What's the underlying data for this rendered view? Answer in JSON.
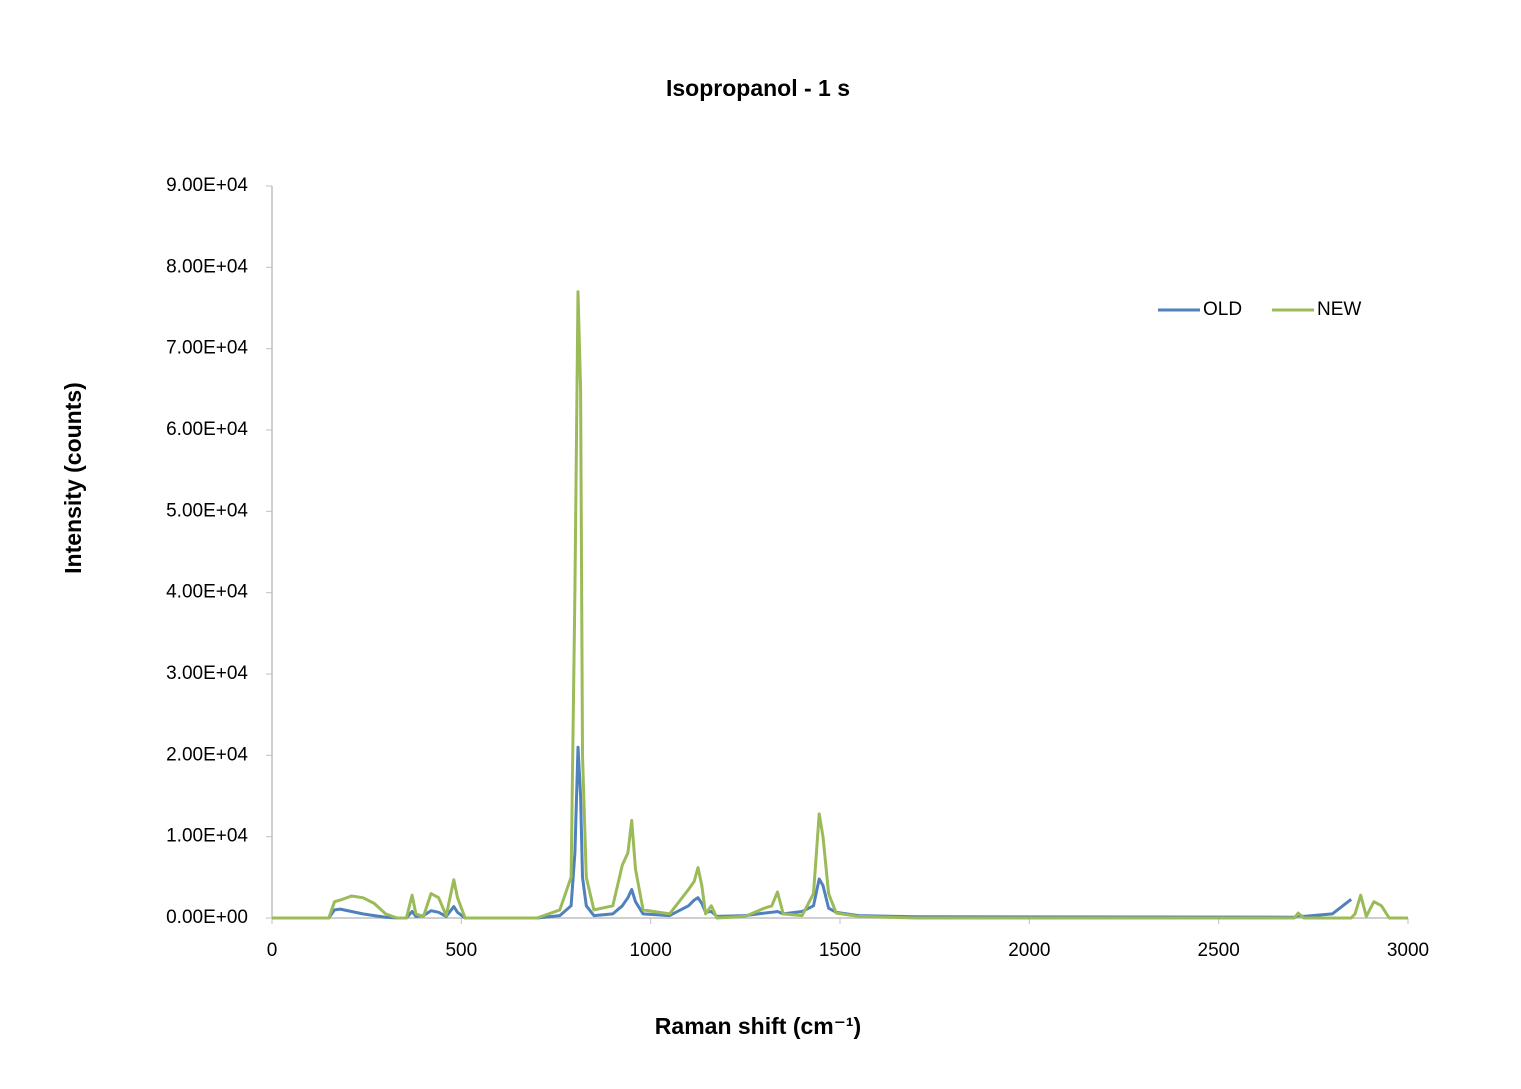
{
  "chart_data": {
    "type": "line",
    "title": "Isopropanol - 1 s",
    "x_label": "Raman shift (cm⁻¹)",
    "y_label": "Intensity (counts)",
    "xlim": [
      0,
      3000
    ],
    "xticks": [
      0,
      500,
      1000,
      1500,
      2000,
      2500,
      3000
    ],
    "ylim": [
      0,
      90000
    ],
    "yticks": [
      {
        "value": 0,
        "label": "0.00E+00"
      },
      {
        "value": 10000,
        "label": "1.00E+04"
      },
      {
        "value": 20000,
        "label": "2.00E+04"
      },
      {
        "value": 30000,
        "label": "3.00E+04"
      },
      {
        "value": 40000,
        "label": "4.00E+04"
      },
      {
        "value": 50000,
        "label": "5.00E+04"
      },
      {
        "value": 60000,
        "label": "6.00E+04"
      },
      {
        "value": 70000,
        "label": "7.00E+04"
      },
      {
        "value": 80000,
        "label": "8.00E+04"
      },
      {
        "value": 90000,
        "label": "9.00E+04"
      }
    ],
    "grid": false,
    "legend": "top-right",
    "x": [
      0,
      100,
      150,
      165,
      180,
      210,
      240,
      270,
      300,
      330,
      355,
      370,
      380,
      400,
      420,
      440,
      460,
      480,
      490,
      510,
      700,
      760,
      790,
      800,
      808,
      815,
      820,
      830,
      850,
      900,
      925,
      940,
      950,
      960,
      980,
      1050,
      1100,
      1115,
      1125,
      1135,
      1145,
      1160,
      1175,
      1250,
      1300,
      1320,
      1335,
      1350,
      1400,
      1430,
      1445,
      1455,
      1470,
      1490,
      1550,
      1700,
      2700,
      2710,
      2725,
      2800,
      2850,
      2860,
      2875,
      2890,
      2910,
      2930,
      2950,
      3000
    ],
    "series": [
      {
        "name": "OLD",
        "color": "#4f81bd",
        "values": [
          0,
          0,
          0,
          1000,
          1100,
          800,
          500,
          300,
          100,
          0,
          0,
          800,
          200,
          300,
          900,
          700,
          200,
          1400,
          700,
          0,
          0,
          300,
          1500,
          8000,
          21000,
          15000,
          5000,
          1500,
          300,
          500,
          1500,
          2500,
          3500,
          2000,
          500,
          300,
          1500,
          2200,
          2500,
          1800,
          700,
          800,
          200,
          300,
          600,
          700,
          800,
          500,
          800,
          1500,
          4800,
          4000,
          1200,
          700,
          300,
          150,
          100,
          300,
          200,
          500,
          2300,
          null,
          null,
          null,
          null,
          null,
          null,
          null
        ]
      },
      {
        "name": "NEW",
        "color": "#9bbb59",
        "values": [
          0,
          0,
          0,
          2000,
          2200,
          2700,
          2500,
          1800,
          500,
          0,
          0,
          2800,
          500,
          200,
          3000,
          2500,
          300,
          4700,
          2500,
          0,
          0,
          1000,
          5000,
          40000,
          77000,
          65000,
          20000,
          5000,
          1000,
          1500,
          6500,
          8000,
          12000,
          6000,
          1000,
          500,
          3500,
          4500,
          6200,
          4000,
          500,
          1500,
          0,
          200,
          1200,
          1500,
          3200,
          500,
          300,
          3000,
          12800,
          10000,
          3000,
          600,
          200,
          0,
          0,
          600,
          0,
          0,
          0,
          500,
          2800,
          200,
          2000,
          1500,
          0,
          0
        ]
      }
    ]
  }
}
